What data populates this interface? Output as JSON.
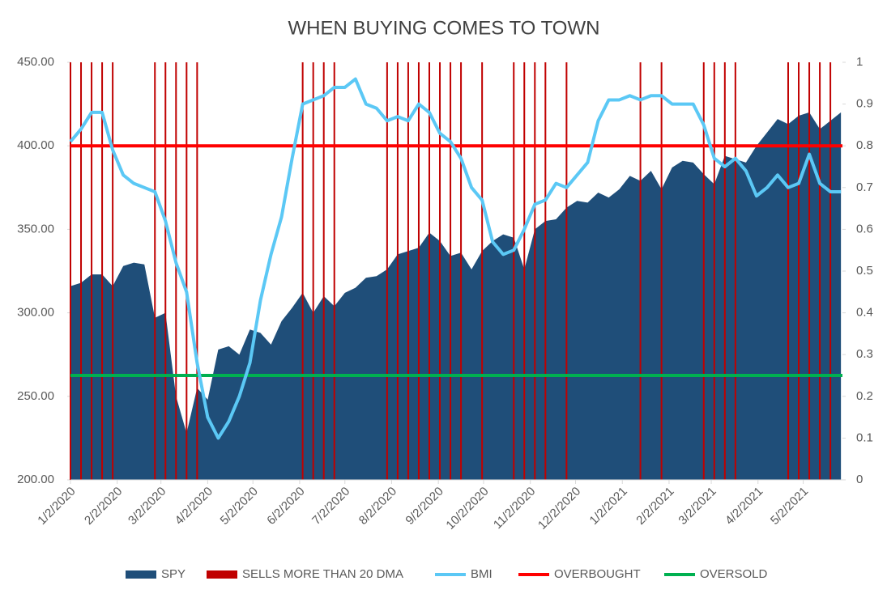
{
  "chart_data": {
    "type": "combo",
    "title": "WHEN BUYING COMES TO TOWN",
    "x": [
      "1/2/2020",
      "1/9/2020",
      "1/16/2020",
      "1/23/2020",
      "1/30/2020",
      "2/6/2020",
      "2/13/2020",
      "2/20/2020",
      "2/27/2020",
      "3/5/2020",
      "3/12/2020",
      "3/19/2020",
      "3/26/2020",
      "4/2/2020",
      "4/9/2020",
      "4/16/2020",
      "4/23/2020",
      "4/30/2020",
      "5/7/2020",
      "5/14/2020",
      "5/21/2020",
      "5/28/2020",
      "6/4/2020",
      "6/11/2020",
      "6/18/2020",
      "6/25/2020",
      "7/2/2020",
      "7/9/2020",
      "7/16/2020",
      "7/23/2020",
      "7/30/2020",
      "8/6/2020",
      "8/13/2020",
      "8/20/2020",
      "8/27/2020",
      "9/3/2020",
      "9/10/2020",
      "9/17/2020",
      "9/24/2020",
      "10/1/2020",
      "10/8/2020",
      "10/15/2020",
      "10/22/2020",
      "10/29/2020",
      "11/5/2020",
      "11/12/2020",
      "11/19/2020",
      "11/26/2020",
      "12/3/2020",
      "12/10/2020",
      "12/17/2020",
      "12/24/2020",
      "12/31/2020",
      "1/7/2021",
      "1/14/2021",
      "1/21/2021",
      "1/28/2021",
      "2/4/2021",
      "2/11/2021",
      "2/18/2021",
      "2/25/2021",
      "3/4/2021",
      "3/11/2021",
      "3/18/2021",
      "3/25/2021",
      "4/1/2021",
      "4/8/2021",
      "4/15/2021",
      "4/22/2021",
      "4/29/2021",
      "5/6/2021",
      "5/13/2021",
      "5/20/2021",
      "5/27/2021"
    ],
    "series": [
      {
        "name": "SPY",
        "type": "area",
        "color": "#1f4e79",
        "values": [
          316,
          318,
          323,
          323,
          316,
          328,
          330,
          329,
          297,
          300,
          250,
          228,
          255,
          248,
          278,
          280,
          275,
          290,
          288,
          281,
          295,
          303,
          312,
          300,
          310,
          304,
          312,
          315,
          321,
          322,
          326,
          335,
          337,
          339,
          348,
          343,
          334,
          336,
          326,
          337,
          343,
          347,
          345,
          326,
          350,
          355,
          356,
          363,
          367,
          366,
          372,
          369,
          374,
          382,
          379,
          385,
          374,
          387,
          391,
          390,
          383,
          377,
          394,
          392,
          390,
          400,
          408,
          416,
          413,
          418,
          420,
          410,
          415,
          420
        ]
      },
      {
        "name": "SELLS MORE THAN 20 DMA",
        "type": "bar",
        "axis": "y2",
        "color": "#c00000",
        "values": [
          1,
          1,
          1,
          1,
          1,
          0,
          0,
          0,
          1,
          1,
          1,
          1,
          1,
          0,
          0,
          0,
          0,
          0,
          0,
          0,
          0,
          0,
          1,
          1,
          1,
          1,
          0,
          0,
          0,
          0,
          1,
          1,
          1,
          1,
          1,
          1,
          1,
          1,
          0,
          1,
          0,
          0,
          1,
          1,
          1,
          1,
          0,
          1,
          0,
          0,
          0,
          0,
          0,
          0,
          1,
          0,
          1,
          0,
          0,
          0,
          1,
          1,
          1,
          1,
          0,
          0,
          0,
          0,
          1,
          1,
          1,
          1,
          1,
          0
        ]
      },
      {
        "name": "BMI",
        "type": "line",
        "axis": "y2",
        "color": "#5bc8f5",
        "values": [
          0.81,
          0.84,
          0.88,
          0.88,
          0.79,
          0.73,
          0.71,
          0.7,
          0.69,
          0.62,
          0.52,
          0.45,
          0.28,
          0.15,
          0.1,
          0.14,
          0.2,
          0.28,
          0.43,
          0.54,
          0.63,
          0.77,
          0.9,
          0.91,
          0.92,
          0.94,
          0.94,
          0.96,
          0.9,
          0.89,
          0.86,
          0.87,
          0.86,
          0.9,
          0.88,
          0.83,
          0.81,
          0.77,
          0.7,
          0.67,
          0.57,
          0.54,
          0.55,
          0.6,
          0.66,
          0.67,
          0.71,
          0.7,
          0.73,
          0.76,
          0.86,
          0.91,
          0.91,
          0.92,
          0.91,
          0.92,
          0.92,
          0.9,
          0.9,
          0.9,
          0.85,
          0.77,
          0.75,
          0.77,
          0.74,
          0.68,
          0.7,
          0.73,
          0.7,
          0.71,
          0.78,
          0.71,
          0.69,
          0.69
        ]
      },
      {
        "name": "OVERBOUGHT",
        "type": "hline",
        "axis": "y2",
        "color": "#ff0000",
        "value": 0.8
      },
      {
        "name": "OVERSOLD",
        "type": "hline",
        "axis": "y2",
        "color": "#00b050",
        "value": 0.25
      }
    ],
    "xlim": [
      "1/2/2020",
      "5/28/2021"
    ],
    "xticks": [
      "1/2/2020",
      "2/2/2020",
      "3/2/2020",
      "4/2/2020",
      "5/2/2020",
      "6/2/2020",
      "7/2/2020",
      "8/2/2020",
      "9/2/2020",
      "10/2/2020",
      "11/2/2020",
      "12/2/2020",
      "1/2/2021",
      "2/2/2021",
      "3/2/2021",
      "4/2/2021",
      "5/2/2021"
    ],
    "ylim": [
      200,
      450
    ],
    "yticks": [
      {
        "value": 200,
        "label": "200.00"
      },
      {
        "value": 250,
        "label": "250.00"
      },
      {
        "value": 300,
        "label": "300.00"
      },
      {
        "value": 350,
        "label": "350.00"
      },
      {
        "value": 400,
        "label": "400.00"
      },
      {
        "value": 450,
        "label": "450.00"
      }
    ],
    "y2lim": [
      0,
      1
    ],
    "y2ticks": [
      0,
      0.1,
      0.2,
      0.3,
      0.4,
      0.5,
      0.6,
      0.7,
      0.8,
      0.9,
      1
    ],
    "legend": "bottom"
  }
}
